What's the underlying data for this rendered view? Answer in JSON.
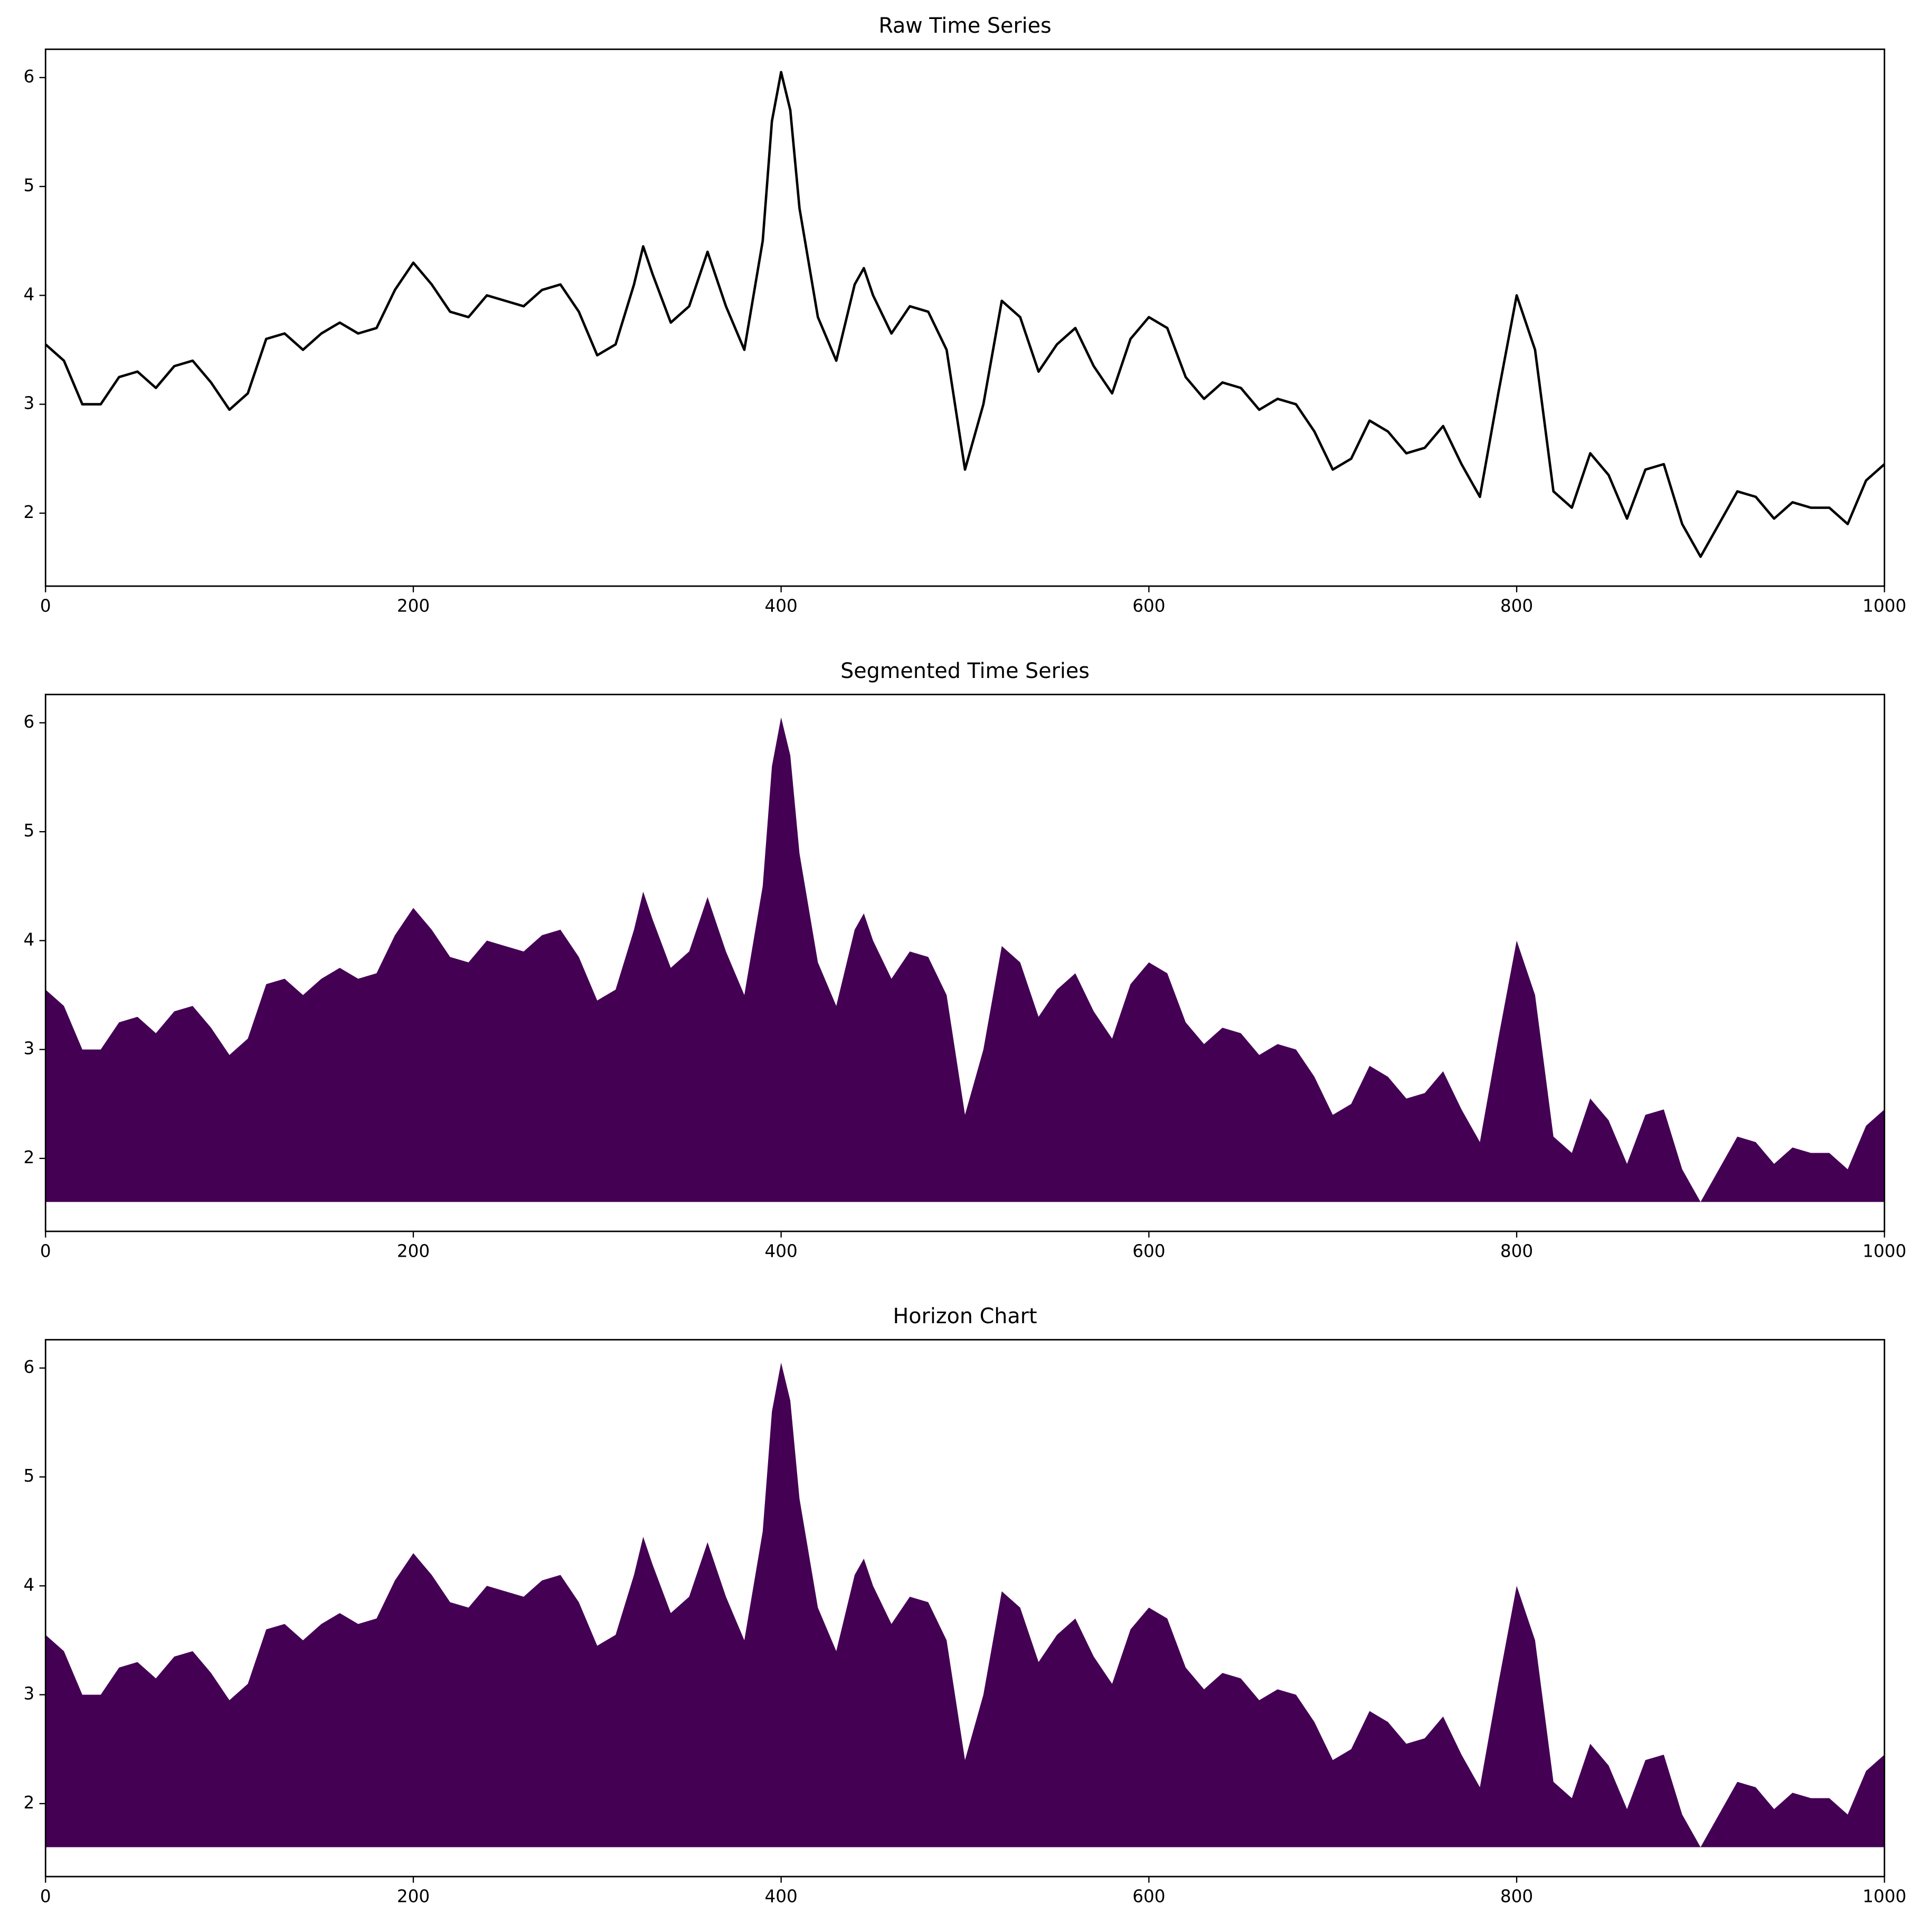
{
  "chart_data": [
    {
      "type": "line",
      "title": "Raw Time Series",
      "color": "#000000",
      "x": [
        0,
        10,
        20,
        30,
        40,
        50,
        60,
        70,
        80,
        90,
        100,
        110,
        120,
        130,
        140,
        150,
        160,
        170,
        180,
        190,
        200,
        210,
        220,
        230,
        240,
        250,
        260,
        270,
        280,
        290,
        300,
        310,
        320,
        325,
        330,
        340,
        350,
        360,
        370,
        380,
        390,
        395,
        400,
        405,
        410,
        420,
        430,
        440,
        445,
        450,
        460,
        470,
        480,
        490,
        500,
        510,
        520,
        530,
        540,
        550,
        560,
        570,
        580,
        590,
        600,
        610,
        620,
        630,
        640,
        650,
        660,
        670,
        680,
        690,
        700,
        710,
        720,
        730,
        740,
        750,
        760,
        770,
        780,
        790,
        800,
        810,
        820,
        830,
        840,
        850,
        860,
        870,
        880,
        890,
        900,
        910,
        920,
        930,
        940,
        950,
        960,
        970,
        980,
        990,
        1000
      ],
      "values": [
        3.55,
        3.4,
        3.0,
        3.0,
        3.25,
        3.3,
        3.15,
        3.35,
        3.4,
        3.2,
        2.95,
        3.1,
        3.6,
        3.65,
        3.5,
        3.65,
        3.75,
        3.65,
        3.7,
        4.05,
        4.3,
        4.1,
        3.85,
        3.8,
        4.0,
        3.95,
        3.9,
        4.05,
        4.1,
        3.85,
        3.45,
        3.55,
        4.1,
        4.45,
        4.2,
        3.75,
        3.9,
        4.4,
        3.9,
        3.5,
        4.5,
        5.6,
        6.05,
        5.7,
        4.8,
        3.8,
        3.4,
        4.1,
        4.25,
        4.0,
        3.65,
        3.9,
        3.85,
        3.5,
        2.4,
        3.0,
        3.95,
        3.8,
        3.3,
        3.55,
        3.7,
        3.35,
        3.1,
        3.6,
        3.8,
        3.7,
        3.25,
        3.05,
        3.2,
        3.15,
        2.95,
        3.05,
        3.0,
        2.75,
        2.4,
        2.5,
        2.85,
        2.75,
        2.55,
        2.6,
        2.8,
        2.45,
        2.15,
        3.1,
        4.0,
        3.5,
        2.2,
        2.05,
        2.55,
        2.35,
        1.95,
        2.4,
        2.45,
        1.9,
        1.6,
        1.9,
        2.2,
        2.15,
        1.95,
        2.1,
        2.05,
        2.05,
        1.9,
        2.3,
        2.45
      ],
      "xlim": [
        0,
        1000
      ],
      "ylim": [
        1.33,
        6.26
      ],
      "xticks": [
        0,
        200,
        400,
        600,
        800,
        1000
      ],
      "yticks": [
        2,
        3,
        4,
        5,
        6
      ]
    },
    {
      "type": "area",
      "title": "Segmented Time Series",
      "color": "#440154",
      "x": [
        0,
        10,
        20,
        30,
        40,
        50,
        60,
        70,
        80,
        90,
        100,
        110,
        120,
        130,
        140,
        150,
        160,
        170,
        180,
        190,
        200,
        210,
        220,
        230,
        240,
        250,
        260,
        270,
        280,
        290,
        300,
        310,
        320,
        325,
        330,
        340,
        350,
        360,
        370,
        380,
        390,
        395,
        400,
        405,
        410,
        420,
        430,
        440,
        445,
        450,
        460,
        470,
        480,
        490,
        500,
        510,
        520,
        530,
        540,
        550,
        560,
        570,
        580,
        590,
        600,
        610,
        620,
        630,
        640,
        650,
        660,
        670,
        680,
        690,
        700,
        710,
        720,
        730,
        740,
        750,
        760,
        770,
        780,
        790,
        800,
        810,
        820,
        830,
        840,
        850,
        860,
        870,
        880,
        890,
        900,
        910,
        920,
        930,
        940,
        950,
        960,
        970,
        980,
        990,
        1000
      ],
      "values": [
        3.55,
        3.4,
        3.0,
        3.0,
        3.25,
        3.3,
        3.15,
        3.35,
        3.4,
        3.2,
        2.95,
        3.1,
        3.6,
        3.65,
        3.5,
        3.65,
        3.75,
        3.65,
        3.7,
        4.05,
        4.3,
        4.1,
        3.85,
        3.8,
        4.0,
        3.95,
        3.9,
        4.05,
        4.1,
        3.85,
        3.45,
        3.55,
        4.1,
        4.45,
        4.2,
        3.75,
        3.9,
        4.4,
        3.9,
        3.5,
        4.5,
        5.6,
        6.05,
        5.7,
        4.8,
        3.8,
        3.4,
        4.1,
        4.25,
        4.0,
        3.65,
        3.9,
        3.85,
        3.5,
        2.4,
        3.0,
        3.95,
        3.8,
        3.3,
        3.55,
        3.7,
        3.35,
        3.1,
        3.6,
        3.8,
        3.7,
        3.25,
        3.05,
        3.2,
        3.15,
        2.95,
        3.05,
        3.0,
        2.75,
        2.4,
        2.5,
        2.85,
        2.75,
        2.55,
        2.6,
        2.8,
        2.45,
        2.15,
        3.1,
        4.0,
        3.5,
        2.2,
        2.05,
        2.55,
        2.35,
        1.95,
        2.4,
        2.45,
        1.9,
        1.6,
        1.9,
        2.2,
        2.15,
        1.95,
        2.1,
        2.05,
        2.05,
        1.9,
        2.3,
        2.45
      ],
      "xlim": [
        0,
        1000
      ],
      "ylim": [
        1.33,
        6.26
      ],
      "xticks": [
        0,
        200,
        400,
        600,
        800,
        1000
      ],
      "yticks": [
        2,
        3,
        4,
        5,
        6
      ]
    },
    {
      "type": "area",
      "title": "Horizon Chart",
      "color": "#440154",
      "x": [
        0,
        10,
        20,
        30,
        40,
        50,
        60,
        70,
        80,
        90,
        100,
        110,
        120,
        130,
        140,
        150,
        160,
        170,
        180,
        190,
        200,
        210,
        220,
        230,
        240,
        250,
        260,
        270,
        280,
        290,
        300,
        310,
        320,
        325,
        330,
        340,
        350,
        360,
        370,
        380,
        390,
        395,
        400,
        405,
        410,
        420,
        430,
        440,
        445,
        450,
        460,
        470,
        480,
        490,
        500,
        510,
        520,
        530,
        540,
        550,
        560,
        570,
        580,
        590,
        600,
        610,
        620,
        630,
        640,
        650,
        660,
        670,
        680,
        690,
        700,
        710,
        720,
        730,
        740,
        750,
        760,
        770,
        780,
        790,
        800,
        810,
        820,
        830,
        840,
        850,
        860,
        870,
        880,
        890,
        900,
        910,
        920,
        930,
        940,
        950,
        960,
        970,
        980,
        990,
        1000
      ],
      "values": [
        3.55,
        3.4,
        3.0,
        3.0,
        3.25,
        3.3,
        3.15,
        3.35,
        3.4,
        3.2,
        2.95,
        3.1,
        3.6,
        3.65,
        3.5,
        3.65,
        3.75,
        3.65,
        3.7,
        4.05,
        4.3,
        4.1,
        3.85,
        3.8,
        4.0,
        3.95,
        3.9,
        4.05,
        4.1,
        3.85,
        3.45,
        3.55,
        4.1,
        4.45,
        4.2,
        3.75,
        3.9,
        4.4,
        3.9,
        3.5,
        4.5,
        5.6,
        6.05,
        5.7,
        4.8,
        3.8,
        3.4,
        4.1,
        4.25,
        4.0,
        3.65,
        3.9,
        3.85,
        3.5,
        2.4,
        3.0,
        3.95,
        3.8,
        3.3,
        3.55,
        3.7,
        3.35,
        3.1,
        3.6,
        3.8,
        3.7,
        3.25,
        3.05,
        3.2,
        3.15,
        2.95,
        3.05,
        3.0,
        2.75,
        2.4,
        2.5,
        2.85,
        2.75,
        2.55,
        2.6,
        2.8,
        2.45,
        2.15,
        3.1,
        4.0,
        3.5,
        2.2,
        2.05,
        2.55,
        2.35,
        1.95,
        2.4,
        2.45,
        1.9,
        1.6,
        1.9,
        2.2,
        2.15,
        1.95,
        2.1,
        2.05,
        2.05,
        1.9,
        2.3,
        2.45
      ],
      "xlim": [
        0,
        1000
      ],
      "ylim": [
        1.33,
        6.26
      ],
      "xticks": [
        0,
        200,
        400,
        600,
        800,
        1000
      ],
      "yticks": [
        2,
        3,
        4,
        5,
        6
      ]
    }
  ]
}
